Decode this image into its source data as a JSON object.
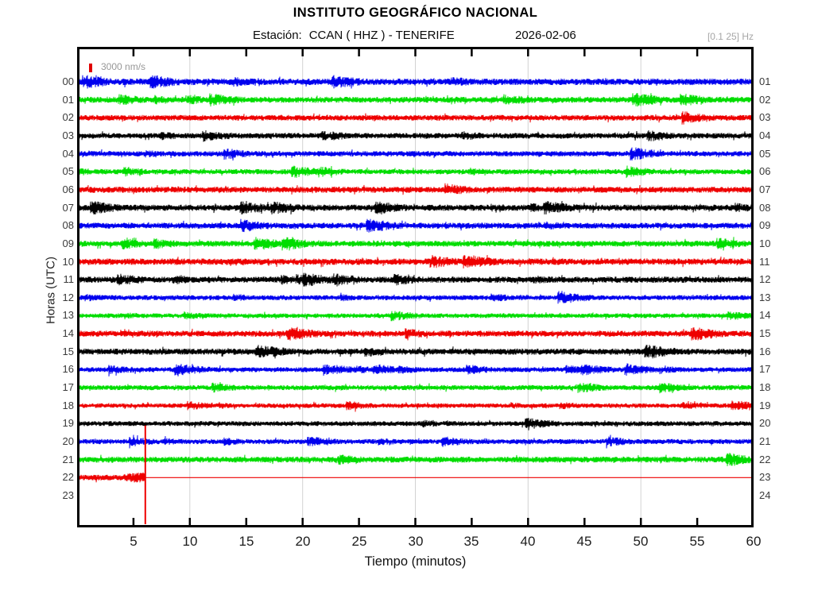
{
  "header": {
    "title": "INSTITUTO GEOGRÁFICO NACIONAL",
    "station_label": "Estación:",
    "station_value": "CCAN ( HHZ ) - TENERIFE",
    "date": "2026-02-06",
    "filter_band": "[0.1 25] Hz"
  },
  "legend": {
    "scale_label": "3000 nm/s",
    "scale_color": "#e00000"
  },
  "axes": {
    "ylabel": "Horas (UTC)",
    "xlabel": "Tiempo (minutos)",
    "x_range": [
      0,
      60
    ],
    "x_ticks": [
      5,
      10,
      15,
      20,
      25,
      30,
      35,
      40,
      45,
      50,
      55,
      60
    ],
    "grid_minutes": [
      10,
      20,
      30,
      40,
      50
    ],
    "grid_color": "#d2d2d2",
    "left_hour_labels": [
      "00",
      "01",
      "02",
      "03",
      "04",
      "05",
      "06",
      "07",
      "08",
      "09",
      "10",
      "11",
      "12",
      "13",
      "14",
      "15",
      "16",
      "17",
      "18",
      "19",
      "20",
      "21",
      "22",
      "23"
    ],
    "right_hour_labels": [
      "01",
      "02",
      "03",
      "04",
      "05",
      "06",
      "07",
      "08",
      "09",
      "10",
      "11",
      "12",
      "13",
      "14",
      "15",
      "16",
      "17",
      "18",
      "19",
      "20",
      "21",
      "22",
      "23",
      "24"
    ]
  },
  "chart_data": {
    "type": "line",
    "subtype": "helicorder-seismogram",
    "title": "INSTITUTO GEOGRÁFICO NACIONAL",
    "station": "CCAN",
    "channel": "HHZ",
    "site": "TENERIFE",
    "date": "2026-02-06",
    "filter_band_hz": [
      0.1,
      25
    ],
    "amplitude_scale_nm_s": 3000,
    "xlabel": "Tiempo (minutos)",
    "ylabel": "Horas (UTC)",
    "xlim": [
      0,
      60
    ],
    "rows_are_hours_utc": true,
    "color_cycle": [
      "#0000ee",
      "#00dd00",
      "#ee0000",
      "#000000"
    ],
    "rows": [
      {
        "hour": 0,
        "left_label": "00",
        "right_label": "01",
        "color": "#0000ee",
        "start_min": 0,
        "end_min": 60,
        "has_data": true
      },
      {
        "hour": 1,
        "left_label": "01",
        "right_label": "02",
        "color": "#00dd00",
        "start_min": 0,
        "end_min": 60,
        "has_data": true
      },
      {
        "hour": 2,
        "left_label": "02",
        "right_label": "03",
        "color": "#ee0000",
        "start_min": 0,
        "end_min": 60,
        "has_data": true
      },
      {
        "hour": 3,
        "left_label": "03",
        "right_label": "04",
        "color": "#000000",
        "start_min": 0,
        "end_min": 60,
        "has_data": true
      },
      {
        "hour": 4,
        "left_label": "04",
        "right_label": "05",
        "color": "#0000ee",
        "start_min": 0,
        "end_min": 60,
        "has_data": true
      },
      {
        "hour": 5,
        "left_label": "05",
        "right_label": "06",
        "color": "#00dd00",
        "start_min": 0,
        "end_min": 60,
        "has_data": true
      },
      {
        "hour": 6,
        "left_label": "06",
        "right_label": "07",
        "color": "#ee0000",
        "start_min": 0,
        "end_min": 60,
        "has_data": true
      },
      {
        "hour": 7,
        "left_label": "07",
        "right_label": "08",
        "color": "#000000",
        "start_min": 0,
        "end_min": 60,
        "has_data": true
      },
      {
        "hour": 8,
        "left_label": "08",
        "right_label": "09",
        "color": "#0000ee",
        "start_min": 0,
        "end_min": 60,
        "has_data": true
      },
      {
        "hour": 9,
        "left_label": "09",
        "right_label": "10",
        "color": "#00dd00",
        "start_min": 0,
        "end_min": 60,
        "has_data": true
      },
      {
        "hour": 10,
        "left_label": "10",
        "right_label": "11",
        "color": "#ee0000",
        "start_min": 0,
        "end_min": 60,
        "has_data": true
      },
      {
        "hour": 11,
        "left_label": "11",
        "right_label": "12",
        "color": "#000000",
        "start_min": 0,
        "end_min": 60,
        "has_data": true
      },
      {
        "hour": 12,
        "left_label": "12",
        "right_label": "13",
        "color": "#0000ee",
        "start_min": 0,
        "end_min": 60,
        "has_data": true
      },
      {
        "hour": 13,
        "left_label": "13",
        "right_label": "14",
        "color": "#00dd00",
        "start_min": 0,
        "end_min": 60,
        "has_data": true
      },
      {
        "hour": 14,
        "left_label": "14",
        "right_label": "15",
        "color": "#ee0000",
        "start_min": 0,
        "end_min": 60,
        "has_data": true
      },
      {
        "hour": 15,
        "left_label": "15",
        "right_label": "16",
        "color": "#000000",
        "start_min": 0,
        "end_min": 60,
        "has_data": true
      },
      {
        "hour": 16,
        "left_label": "16",
        "right_label": "17",
        "color": "#0000ee",
        "start_min": 0,
        "end_min": 60,
        "has_data": true
      },
      {
        "hour": 17,
        "left_label": "17",
        "right_label": "18",
        "color": "#00dd00",
        "start_min": 0,
        "end_min": 60,
        "has_data": true
      },
      {
        "hour": 18,
        "left_label": "18",
        "right_label": "19",
        "color": "#ee0000",
        "start_min": 0,
        "end_min": 60,
        "has_data": true
      },
      {
        "hour": 19,
        "left_label": "19",
        "right_label": "20",
        "color": "#000000",
        "start_min": 0,
        "end_min": 60,
        "has_data": true
      },
      {
        "hour": 20,
        "left_label": "20",
        "right_label": "21",
        "color": "#0000ee",
        "start_min": 0,
        "end_min": 60,
        "has_data": true
      },
      {
        "hour": 21,
        "left_label": "21",
        "right_label": "22",
        "color": "#00dd00",
        "start_min": 0,
        "end_min": 60,
        "has_data": true
      },
      {
        "hour": 22,
        "left_label": "22",
        "right_label": "23",
        "color": "#ee0000",
        "start_min": 0,
        "end_min": 6.05,
        "has_data": true,
        "flat_line_after_end": true
      },
      {
        "hour": 23,
        "left_label": "23",
        "right_label": "24",
        "color": "#000000",
        "start_min": 0,
        "end_min": 0,
        "has_data": false
      }
    ],
    "event": {
      "hour": 22,
      "minute": 6.05,
      "color": "#ee0000",
      "spike_top_hour_line": 19.1,
      "spike_to_plot_bottom": true,
      "description": "Recording of hour 22 stops at ~minute 6 with an off-scale vertical spike; a flat red line continues to minute 60. Hour 23 has no data."
    }
  }
}
